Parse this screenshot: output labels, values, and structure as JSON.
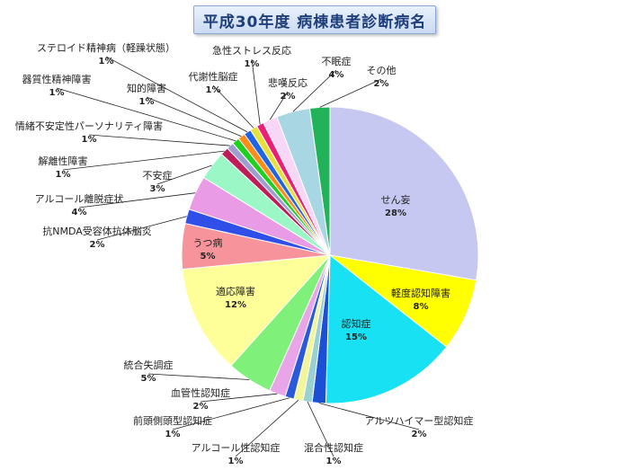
{
  "title": "平成30年度 病棟患者診断病名",
  "chart_data": {
    "type": "pie",
    "title": "平成30年度 病棟患者診断病名",
    "slices": [
      {
        "label": "せん妄",
        "pct_label": "28%",
        "value": 28.0,
        "color": "#c6c8f2"
      },
      {
        "label": "軽度認知障害",
        "pct_label": "8%",
        "value": 8.0,
        "color": "#ffff00"
      },
      {
        "label": "認知症",
        "pct_label": "15%",
        "value": 15.0,
        "color": "#17e1f2"
      },
      {
        "label": "アルツハイマー型認知症",
        "pct_label": "2%",
        "value": 1.5,
        "color": "#1a4fd6"
      },
      {
        "label": "混合性認知症",
        "pct_label": "1%",
        "value": 1.0,
        "color": "#9ad0d0"
      },
      {
        "label": "アルコール性認知症",
        "pct_label": "1%",
        "value": 1.0,
        "color": "#f3f59a"
      },
      {
        "label": "前頭側頭型認知症",
        "pct_label": "1%",
        "value": 1.0,
        "color": "#2a5ad9"
      },
      {
        "label": "血管性認知症",
        "pct_label": "2%",
        "value": 1.8,
        "color": "#e8a6e8"
      },
      {
        "label": "統合失調症",
        "pct_label": "5%",
        "value": 5.0,
        "color": "#7ff07a"
      },
      {
        "label": "適応障害",
        "pct_label": "12%",
        "value": 12.0,
        "color": "#ffff99"
      },
      {
        "label": "うつ病",
        "pct_label": "5%",
        "value": 5.0,
        "color": "#f7939b"
      },
      {
        "label": "抗NMDA受容体抗体脳炎",
        "pct_label": "2%",
        "value": 1.6,
        "color": "#2f4fe8"
      },
      {
        "label": "アルコール離脱症状",
        "pct_label": "4%",
        "value": 3.8,
        "color": "#e99be6"
      },
      {
        "label": "不安症",
        "pct_label": "3%",
        "value": 3.2,
        "color": "#9cf7c6"
      },
      {
        "label": "解離性障害",
        "pct_label": "1%",
        "value": 0.9,
        "color": "#c01c5a"
      },
      {
        "label": "情緒不安定性パーソナリティ障害",
        "pct_label": "1%",
        "value": 0.8,
        "color": "#9e9ecf"
      },
      {
        "label": "器質性精神障害",
        "pct_label": "1%",
        "value": 0.8,
        "color": "#1fd11f"
      },
      {
        "label": "知的障害",
        "pct_label": "1%",
        "value": 0.8,
        "color": "#ff8c1a"
      },
      {
        "label": "ステロイド精神病（軽躁状態）",
        "pct_label": "1%",
        "value": 0.8,
        "color": "#1f63e6"
      },
      {
        "label": "代謝性脳症",
        "pct_label": "1%",
        "value": 0.8,
        "color": "#e8e03a"
      },
      {
        "label": "急性ストレス反応",
        "pct_label": "1%",
        "value": 0.8,
        "color": "#ea1f7a"
      },
      {
        "label": "悲嘆反応",
        "pct_label": "2%",
        "value": 1.6,
        "color": "#f7d6f7"
      },
      {
        "label": "不眠症",
        "pct_label": "4%",
        "value": 3.7,
        "color": "#a9d6e3"
      },
      {
        "label": "その他",
        "pct_label": "2%",
        "value": 2.2,
        "color": "#22b35a"
      }
    ]
  }
}
